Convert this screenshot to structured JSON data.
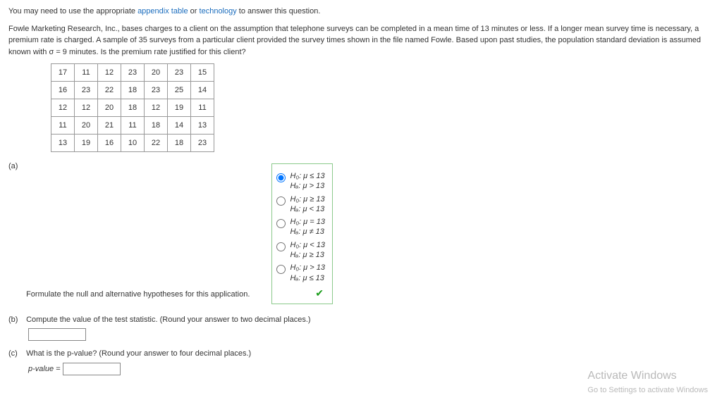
{
  "intro": {
    "prefix": "You may need to use the appropriate ",
    "link1": "appendix table",
    "mid": " or ",
    "link2": "technology",
    "suffix": " to answer this question."
  },
  "problem": "Fowle Marketing Research, Inc., bases charges to a client on the assumption that telephone surveys can be completed in a mean time of 13 minutes or less. If a longer mean survey time is necessary, a premium rate is charged. A sample of 35 surveys from a particular client provided the survey times shown in the file named Fowle. Based upon past studies, the population standard deviation is assumed known with σ = 9 minutes. Is the premium rate justified for this client?",
  "table": {
    "rows": [
      [
        "17",
        "11",
        "12",
        "23",
        "20",
        "23",
        "15"
      ],
      [
        "16",
        "23",
        "22",
        "18",
        "23",
        "25",
        "14"
      ],
      [
        "12",
        "12",
        "20",
        "18",
        "12",
        "19",
        "11"
      ],
      [
        "11",
        "20",
        "21",
        "11",
        "18",
        "14",
        "13"
      ],
      [
        "13",
        "19",
        "16",
        "10",
        "22",
        "18",
        "23"
      ]
    ]
  },
  "parts": {
    "a": {
      "label": "(a)",
      "prompt": "Formulate the null and alternative hypotheses for this application.",
      "options": [
        {
          "h0": "H₀: μ ≤ 13",
          "ha": "Hₐ: μ > 13",
          "selected": true
        },
        {
          "h0": "H₀: μ ≥ 13",
          "ha": "Hₐ: μ < 13",
          "selected": false
        },
        {
          "h0": "H₀: μ = 13",
          "ha": "Hₐ: μ ≠ 13",
          "selected": false
        },
        {
          "h0": "H₀: μ < 13",
          "ha": "Hₐ: μ ≥ 13",
          "selected": false
        },
        {
          "h0": "H₀: μ > 13",
          "ha": "Hₐ: μ ≤ 13",
          "selected": false
        }
      ],
      "check": "✔"
    },
    "b": {
      "label": "(b)",
      "prompt": "Compute the value of the test statistic. (Round your answer to two decimal places.)"
    },
    "c": {
      "label": "(c)",
      "prompt": "What is the p-value? (Round your answer to four decimal places.)",
      "answer_label": "p-value = "
    }
  },
  "watermark": {
    "line1": "Activate Windows",
    "line2": "Go to Settings to activate Windows"
  }
}
